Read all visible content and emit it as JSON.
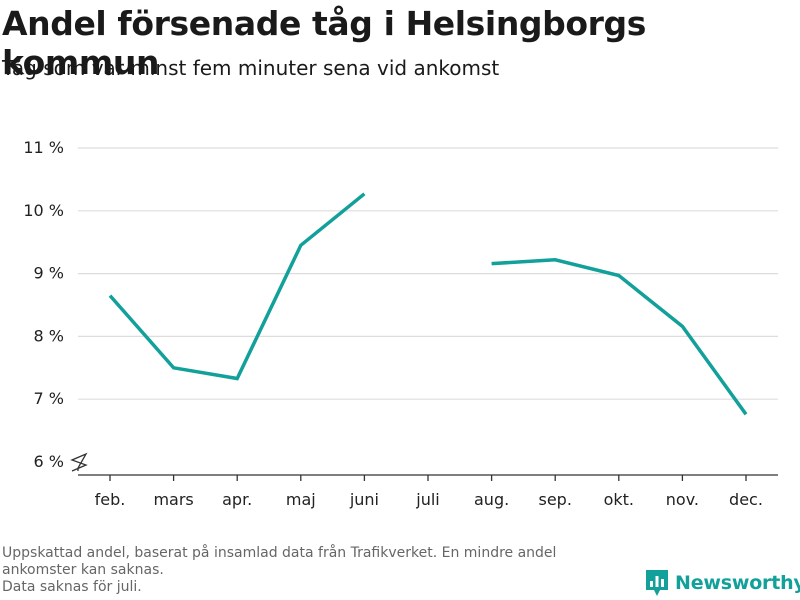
{
  "title": "Andel försenade tåg i Helsingborgs kommun",
  "subtitle": "Tåg som var minst fem minuter sena vid ankomst",
  "footnote": {
    "line1": "Uppskattad andel, baserat på insamlad data från Trafikverket. En mindre andel",
    "line2": "ankomster kan saknas.",
    "line3": "Data saknas för juli."
  },
  "brand": {
    "name": "Newsworthy",
    "icon": "newsworthy-logo-icon",
    "color": "#12a09a"
  },
  "chart_data": {
    "type": "line",
    "x": [
      "feb.",
      "mars",
      "apr.",
      "maj",
      "juni",
      "juli",
      "aug.",
      "sep.",
      "okt.",
      "nov.",
      "dec."
    ],
    "series": [
      {
        "values": [
          8.65,
          7.5,
          7.33,
          9.45,
          10.27,
          null,
          9.16,
          9.22,
          8.97,
          8.16,
          6.76
        ]
      }
    ],
    "y_ticks": [
      6,
      7,
      8,
      9,
      10,
      11
    ],
    "y_tick_labels": [
      "6 %",
      "7 %",
      "8 %",
      "9 %",
      "10 %",
      "11 %"
    ],
    "ylim": [
      6,
      11
    ],
    "y_axis_break": true,
    "grid": true,
    "colors": {
      "line": "#12a09a",
      "grid": "#dddddd",
      "axis": "#333333"
    }
  }
}
